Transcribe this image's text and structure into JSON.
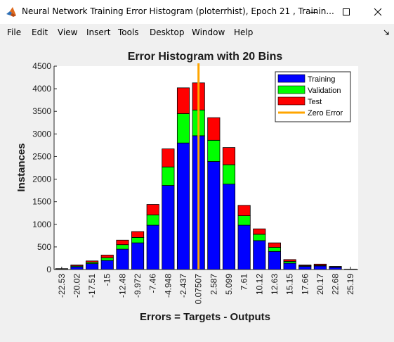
{
  "window": {
    "title": "Neural Network Training Error Histogram (ploterrhist), Epoch 21 , Trainin...",
    "minimize_icon": "minimize-icon",
    "maximize_icon": "maximize-icon",
    "close_icon": "close-icon"
  },
  "menu": {
    "items": [
      "File",
      "Edit",
      "View",
      "Insert",
      "Tools",
      "Desktop",
      "Window",
      "Help"
    ]
  },
  "colors": {
    "training": "#0000ff",
    "validation": "#00ff00",
    "test": "#ff0000",
    "zero_error": "#ffa500"
  },
  "chart_data": {
    "type": "bar",
    "stacked": true,
    "title": "Error Histogram with 20 Bins",
    "xlabel": "Errors = Targets - Outputs",
    "ylabel": "Instances",
    "ylim": [
      0,
      4500
    ],
    "yticks": [
      0,
      500,
      1000,
      1500,
      2000,
      2500,
      3000,
      3500,
      4000,
      4500
    ],
    "categories": [
      "-22.53",
      "-20.02",
      "-17.51",
      "-15",
      "-12.48",
      "-9.972",
      "-7.46",
      "-4.948",
      "-2.437",
      "0.07507",
      "2.587",
      "5.099",
      "7.61",
      "10.12",
      "12.63",
      "15.15",
      "17.66",
      "20.17",
      "22.68",
      "25.19"
    ],
    "series": [
      {
        "name": "Training",
        "values": [
          10,
          60,
          130,
          200,
          450,
          590,
          980,
          1860,
          2800,
          2960,
          2390,
          1890,
          980,
          640,
          400,
          140,
          70,
          80,
          50,
          10
        ]
      },
      {
        "name": "Validation",
        "values": [
          5,
          20,
          30,
          60,
          100,
          120,
          230,
          410,
          650,
          570,
          470,
          430,
          210,
          140,
          90,
          40,
          15,
          15,
          10,
          0
        ]
      },
      {
        "name": "Test",
        "values": [
          5,
          20,
          30,
          60,
          100,
          130,
          230,
          400,
          570,
          600,
          500,
          380,
          230,
          120,
          100,
          40,
          15,
          25,
          10,
          0
        ]
      }
    ],
    "zero_error": {
      "name": "Zero Error",
      "x": 0
    },
    "legend_position": "top-right",
    "grid": false
  }
}
